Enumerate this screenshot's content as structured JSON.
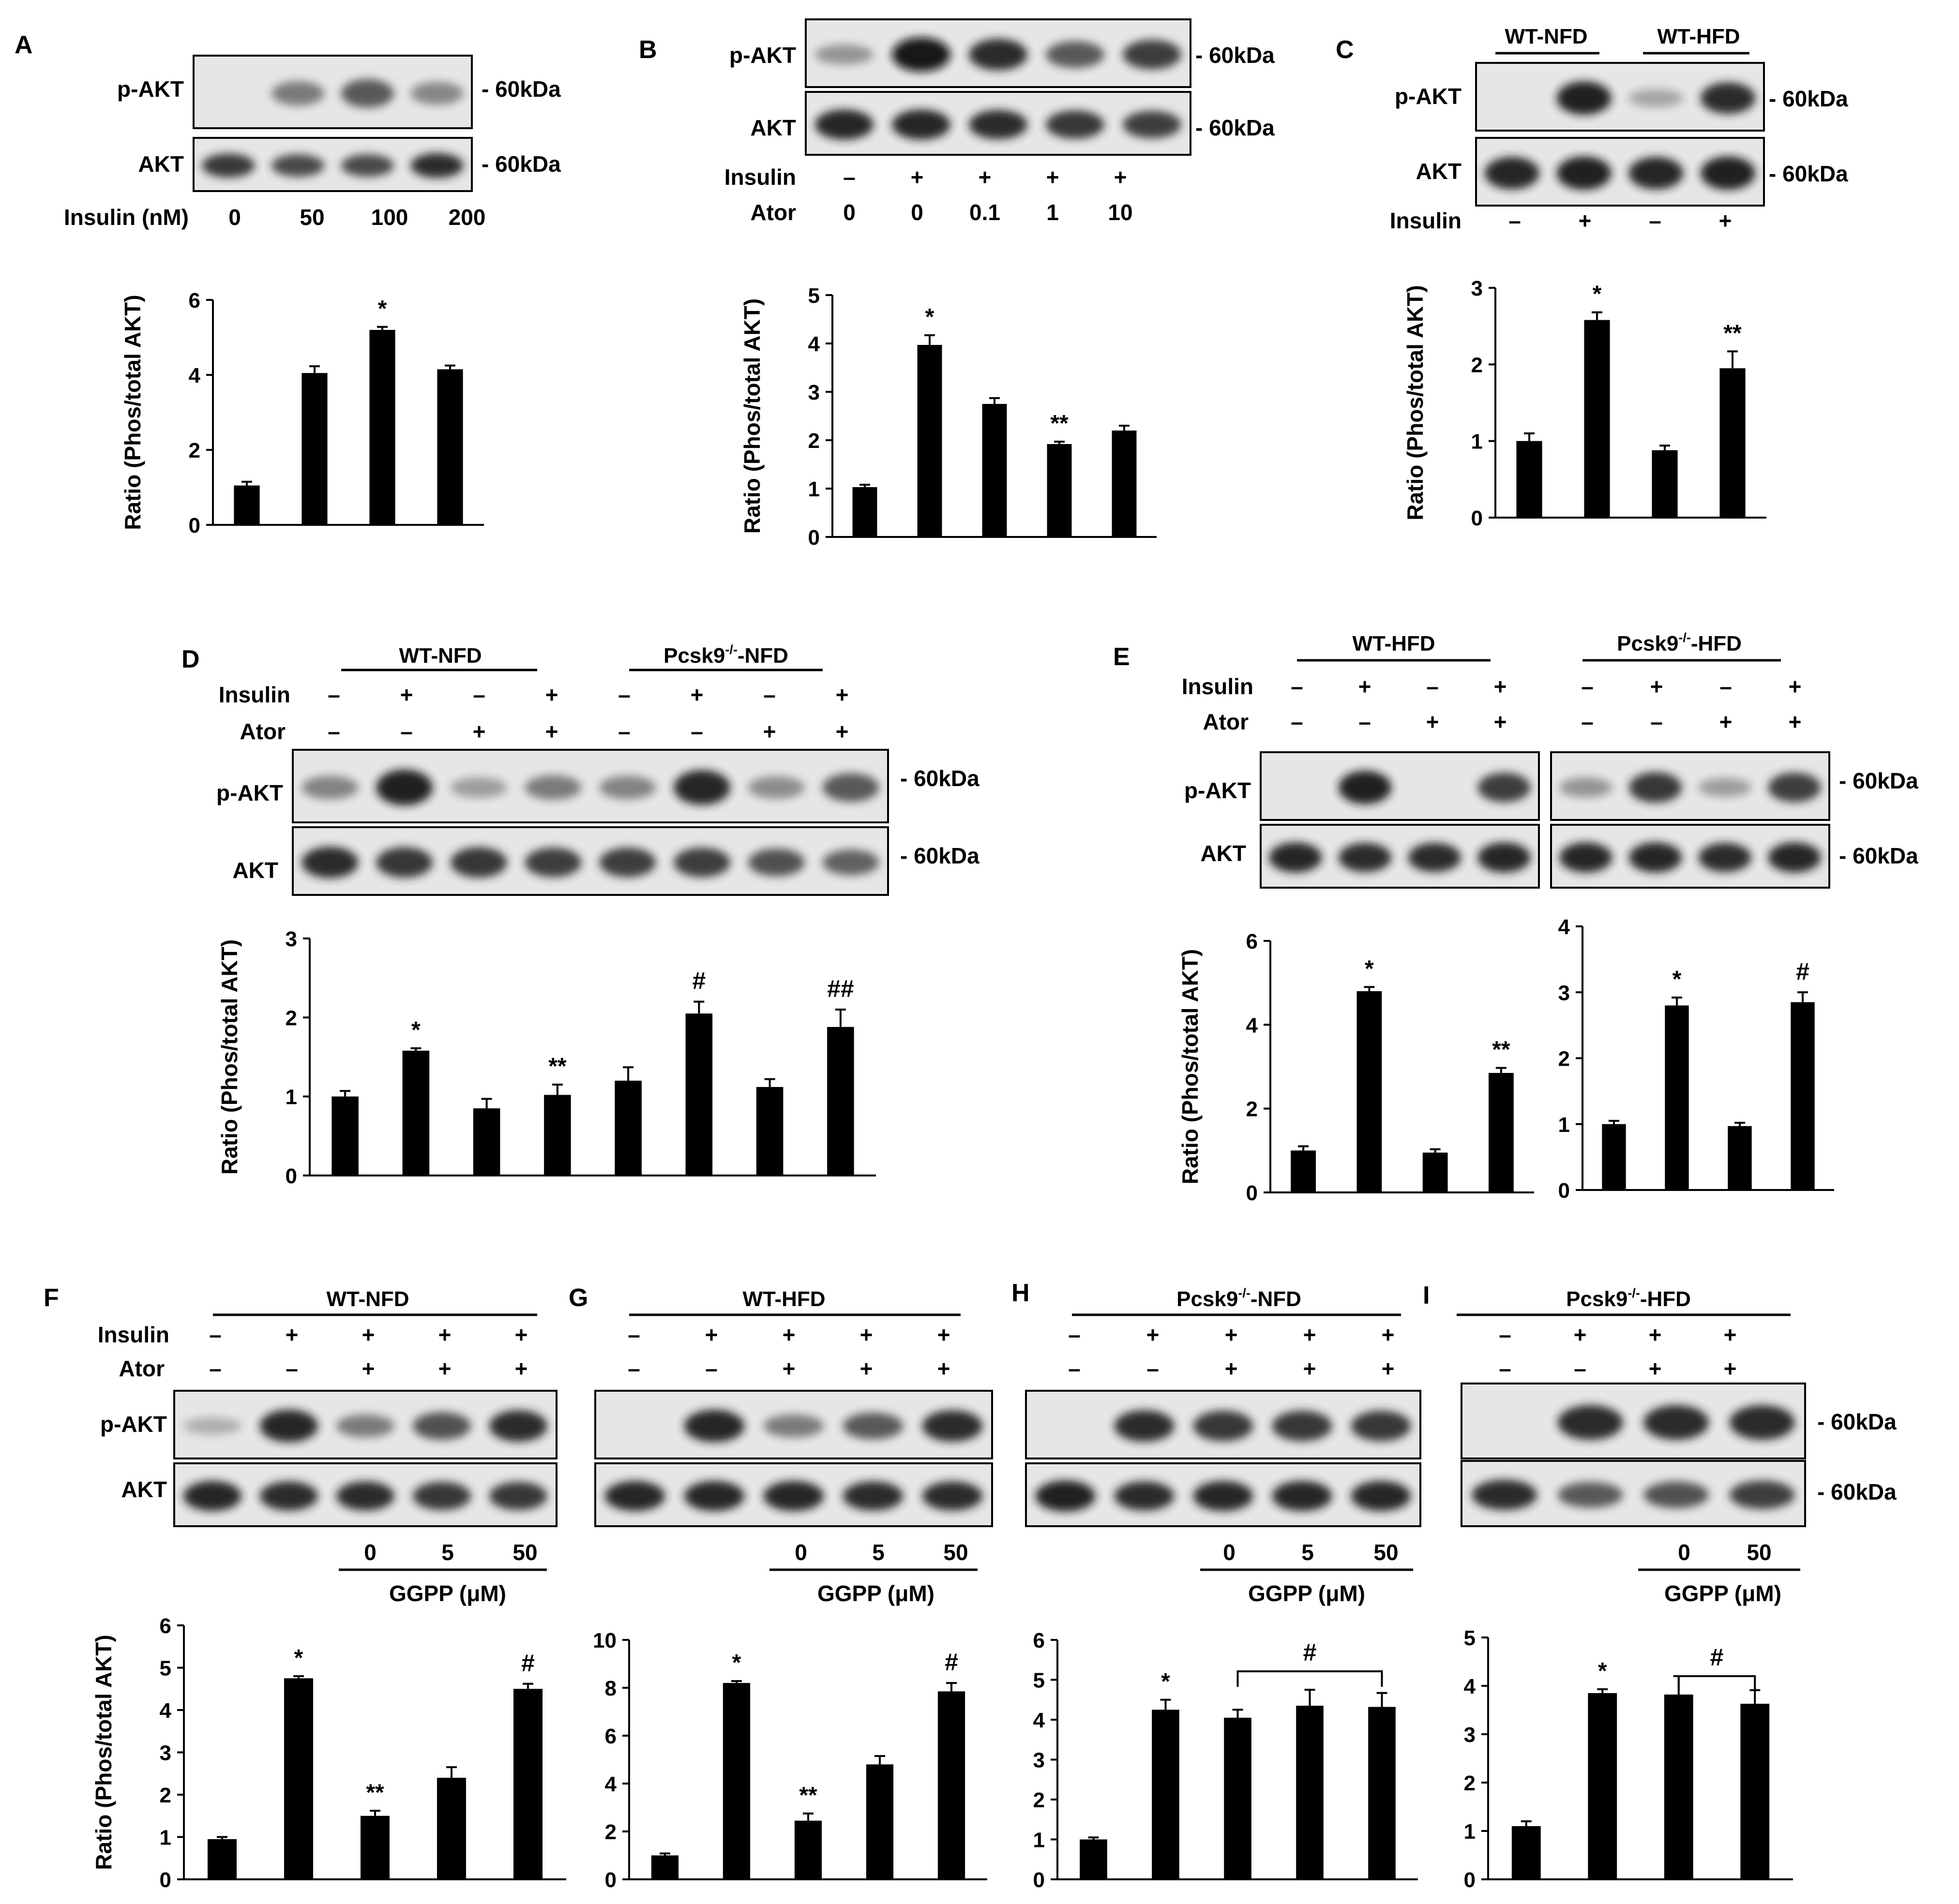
{
  "figure": {
    "kda_label": "- 60kDa",
    "pakt_label": "p-AKT",
    "akt_label": "AKT",
    "ylabel": "Ratio (Phos/total AKT)",
    "minus": "–",
    "plus": "+",
    "insulin": "Insulin",
    "ator": "Ator"
  },
  "panels": [
    {
      "letter": "A"
    },
    {
      "letter": "B"
    },
    {
      "letter": "C"
    },
    {
      "letter": "D"
    },
    {
      "letter": "E"
    },
    {
      "letter": "F"
    },
    {
      "letter": "G"
    },
    {
      "letter": "H"
    },
    {
      "letter": "I"
    }
  ],
  "row_labels": {
    "insulin_nM": "Insulin (nM)",
    "ggpp": "GGPP (μM)",
    "A_insulin": [
      "0",
      "50",
      "100",
      "200"
    ],
    "B_insulin": [
      "–",
      "+",
      "+",
      "+",
      "+"
    ],
    "B_ator": [
      "0",
      "0",
      "0.1",
      "1",
      "10"
    ],
    "ggpp_3": [
      "0",
      "5",
      "50"
    ],
    "ggpp_2": [
      "0",
      "50"
    ]
  },
  "groups": {
    "wt_nfd": "WT-NFD",
    "wt_hfd": "WT-HFD",
    "pcsk9_prefix": "Pcsk9",
    "pcsk9_sup": "-/-",
    "nfd_suffix": "-NFD",
    "hfd_suffix": "-HFD"
  },
  "chart_data": [
    {
      "panel": "A",
      "type": "bar",
      "categories": [
        "0",
        "50",
        "100",
        "200"
      ],
      "values": [
        1.05,
        4.05,
        5.2,
        4.15
      ],
      "errors": [
        0.1,
        0.18,
        0.08,
        0.1
      ],
      "ylim": [
        0,
        6
      ],
      "yticks": [
        0,
        2,
        4,
        6
      ],
      "annotations": [
        "",
        "",
        "*",
        ""
      ],
      "ylabel": "Ratio (Phos/total AKT)"
    },
    {
      "panel": "B",
      "type": "bar",
      "categories": [
        "1",
        "2",
        "3",
        "4",
        "5"
      ],
      "values": [
        1.03,
        3.97,
        2.75,
        1.92,
        2.2
      ],
      "errors": [
        0.05,
        0.2,
        0.12,
        0.05,
        0.1
      ],
      "ylim": [
        0,
        5
      ],
      "yticks": [
        0,
        1,
        2,
        3,
        4,
        5
      ],
      "annotations": [
        "",
        "*",
        "",
        "**",
        ""
      ],
      "ylabel": "Ratio (Phos/total AKT)"
    },
    {
      "panel": "C",
      "type": "bar",
      "categories": [
        "1",
        "2",
        "3",
        "4"
      ],
      "values": [
        1.0,
        2.58,
        0.88,
        1.95
      ],
      "errors": [
        0.1,
        0.1,
        0.06,
        0.22
      ],
      "ylim": [
        0,
        3
      ],
      "yticks": [
        0,
        1,
        2,
        3
      ],
      "annotations": [
        "",
        "*",
        "",
        "**"
      ],
      "ylabel": "Ratio (Phos/total AKT)"
    },
    {
      "panel": "D",
      "type": "bar",
      "categories": [
        "1",
        "2",
        "3",
        "4",
        "5",
        "6",
        "7",
        "8"
      ],
      "values": [
        1.0,
        1.58,
        0.85,
        1.02,
        1.2,
        2.05,
        1.12,
        1.88
      ],
      "errors": [
        0.07,
        0.03,
        0.12,
        0.13,
        0.17,
        0.15,
        0.1,
        0.22
      ],
      "ylim": [
        0,
        3
      ],
      "yticks": [
        0,
        1,
        2,
        3
      ],
      "annotations": [
        "",
        "*",
        "",
        "**",
        "",
        "#",
        "",
        "##"
      ],
      "ylabel": "Ratio (Phos/total AKT)"
    },
    {
      "panel": "E-left",
      "type": "bar",
      "categories": [
        "1",
        "2",
        "3",
        "4"
      ],
      "values": [
        1.0,
        4.8,
        0.95,
        2.85
      ],
      "errors": [
        0.1,
        0.1,
        0.08,
        0.12
      ],
      "ylim": [
        0,
        6
      ],
      "yticks": [
        0,
        2,
        4,
        6
      ],
      "annotations": [
        "",
        "*",
        "",
        "**"
      ],
      "ylabel": "Ratio (Phos/total AKT)"
    },
    {
      "panel": "E-right",
      "type": "bar",
      "categories": [
        "1",
        "2",
        "3",
        "4"
      ],
      "values": [
        1.0,
        2.8,
        0.97,
        2.85
      ],
      "errors": [
        0.05,
        0.12,
        0.05,
        0.15
      ],
      "ylim": [
        0,
        4
      ],
      "yticks": [
        0,
        1,
        2,
        3,
        4
      ],
      "annotations": [
        "",
        "*",
        "",
        "#"
      ]
    },
    {
      "panel": "F",
      "type": "bar",
      "categories": [
        "1",
        "2",
        "3",
        "4",
        "5"
      ],
      "values": [
        0.95,
        4.75,
        1.5,
        2.4,
        4.5
      ],
      "errors": [
        0.05,
        0.05,
        0.12,
        0.25,
        0.12
      ],
      "ylim": [
        0,
        6
      ],
      "yticks": [
        0,
        1,
        2,
        3,
        4,
        5,
        6
      ],
      "annotations": [
        "",
        "*",
        "**",
        "",
        "#"
      ],
      "ylabel": "Ratio (Phos/total AKT)"
    },
    {
      "panel": "G",
      "type": "bar",
      "categories": [
        "1",
        "2",
        "3",
        "4",
        "5"
      ],
      "values": [
        1.0,
        8.2,
        2.45,
        4.8,
        7.85
      ],
      "errors": [
        0.08,
        0.08,
        0.3,
        0.35,
        0.35
      ],
      "ylim": [
        0,
        10
      ],
      "yticks": [
        0,
        2,
        4,
        6,
        8,
        10
      ],
      "annotations": [
        "",
        "*",
        "**",
        "",
        "#"
      ]
    },
    {
      "panel": "H",
      "type": "bar",
      "categories": [
        "1",
        "2",
        "3",
        "4",
        "5"
      ],
      "values": [
        1.0,
        4.25,
        4.05,
        4.35,
        4.32
      ],
      "errors": [
        0.05,
        0.25,
        0.2,
        0.4,
        0.35
      ],
      "ylim": [
        0,
        6
      ],
      "yticks": [
        0,
        1,
        2,
        3,
        4,
        5,
        6
      ],
      "annotations": [
        "",
        "*",
        "",
        "",
        ""
      ],
      "bracket": {
        "from": 3,
        "to": 5,
        "label": "#"
      }
    },
    {
      "panel": "I",
      "type": "bar",
      "categories": [
        "1",
        "2",
        "3",
        "4"
      ],
      "values": [
        1.1,
        3.85,
        3.82,
        3.63
      ],
      "errors": [
        0.1,
        0.08,
        0.38,
        0.28
      ],
      "ylim": [
        0,
        5
      ],
      "yticks": [
        0,
        1,
        2,
        3,
        4,
        5
      ],
      "annotations": [
        "",
        "*",
        "",
        ""
      ],
      "bracket": {
        "from": 3,
        "to": 4,
        "label": "#"
      }
    }
  ]
}
